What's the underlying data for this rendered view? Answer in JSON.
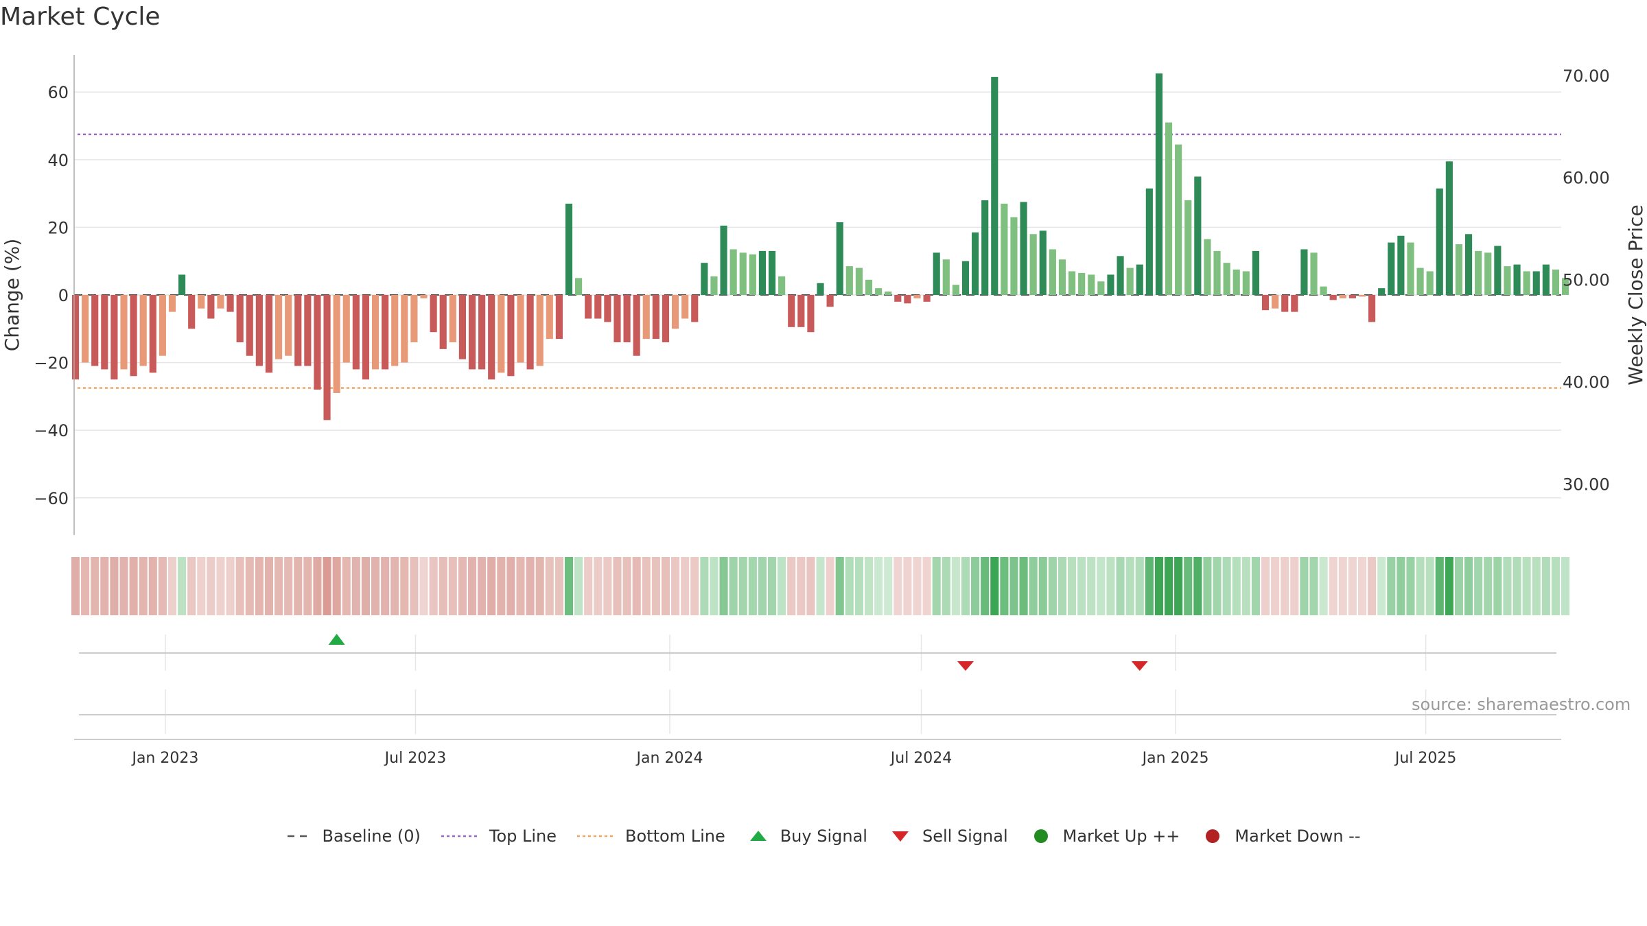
{
  "title": "Market Cycle",
  "source": "source: sharemaestro.com",
  "colors": {
    "dark_green": "#2e8b57",
    "light_green": "#7fbf7f",
    "dark_red": "#c85a5a",
    "light_red": "#e89a78",
    "top_line": "#9966cc",
    "bottom_line": "#f4a460",
    "buy": "#22aa44",
    "sell": "#d62728",
    "market_up": "#228b22",
    "market_down": "#b22222",
    "grid": "#e6e6e6",
    "baseline": "#555555"
  },
  "legend": [
    {
      "label": "Baseline (0)",
      "icon": "dash-line"
    },
    {
      "label": "Top Line",
      "icon": "dotted-line-purple"
    },
    {
      "label": "Bottom Line",
      "icon": "dotted-line-orange"
    },
    {
      "label": "Buy Signal",
      "icon": "triangle-up-icon"
    },
    {
      "label": "Sell Signal",
      "icon": "triangle-down-icon"
    },
    {
      "label": "Market Up ++",
      "icon": "green-dot-icon"
    },
    {
      "label": "Market Down --",
      "icon": "red-dot-icon"
    }
  ],
  "chart_data": {
    "type": "bar",
    "title": "Market Cycle",
    "ylabel": "Change (%)",
    "y2label": "Weekly Close Price",
    "ylim": [
      -71,
      71
    ],
    "y2lim": [
      25,
      72
    ],
    "yticks": [
      60,
      40,
      20,
      0,
      -20,
      -40,
      -60
    ],
    "ytick_labels": [
      "60",
      "40",
      "20",
      "0",
      "−20",
      "−40",
      "−60"
    ],
    "y2ticks": [
      70,
      60,
      50,
      40,
      30
    ],
    "y2tick_labels": [
      "70.00",
      "60.00",
      "50.00",
      "40.00",
      "30.00"
    ],
    "xticks": [
      "2023-01-01",
      "2023-07-01",
      "2024-01-01",
      "2024-07-01",
      "2025-01-01",
      "2025-07-01"
    ],
    "xtick_labels": [
      "Jan 2023",
      "Jul 2023",
      "Jan 2024",
      "Jul 2024",
      "Jan 2025",
      "Jul 2025"
    ],
    "xlim": [
      "2022-10-27",
      "2025-10-07"
    ],
    "top_line": 47.5,
    "bottom_line": -27.5,
    "buy_signals": [
      "2023-05-05"
    ],
    "sell_signals": [
      "2024-08-02",
      "2024-12-06"
    ],
    "first_week": "2022-10-28",
    "week_step_days": 7,
    "values": [
      -25,
      -20,
      -21,
      -22,
      -25,
      -22,
      -24,
      -21,
      -23,
      -18,
      -5,
      6,
      -10,
      -4,
      -7,
      -4,
      -5,
      -14,
      -18,
      -21,
      -23,
      -19,
      -18,
      -21,
      -21,
      -28,
      -37,
      -29,
      -20,
      -22,
      -25,
      -22,
      -22,
      -21,
      -20,
      -14,
      -1,
      -11,
      -16,
      -14,
      -19,
      -22,
      -22,
      -25,
      -23,
      -24,
      -20,
      -22,
      -21,
      -13,
      -13,
      27,
      5,
      -7,
      -7,
      -8,
      -14,
      -14,
      -18,
      -13,
      -13,
      -14,
      -10,
      -7,
      -8,
      9.5,
      5.5,
      20.5,
      13.5,
      12.5,
      12,
      13,
      13,
      5.5,
      -9.5,
      -9.5,
      -11,
      3.5,
      -3.5,
      21.5,
      8.5,
      8,
      4.5,
      2,
      1,
      -2,
      -2.5,
      -1,
      -2,
      12.5,
      10.5,
      3,
      10,
      18.5,
      28,
      64.5,
      27,
      23,
      27.5,
      18,
      19,
      13.5,
      10.5,
      7,
      6.5,
      6,
      4,
      6,
      11.5,
      8,
      9,
      31.5,
      65.5,
      51,
      44.5,
      28,
      35,
      16.5,
      13,
      9.5,
      7.5,
      7,
      13,
      -4.5,
      -4,
      -5,
      -5,
      13.5,
      12.5,
      2.5,
      -1.5,
      -1,
      -1,
      -0.5,
      -8,
      2,
      15.5,
      17.5,
      15.5,
      8,
      7,
      31.5,
      39.5,
      15,
      18,
      13,
      12.5,
      14.5,
      8.5,
      9,
      7,
      7,
      9,
      7.5,
      5
    ]
  }
}
